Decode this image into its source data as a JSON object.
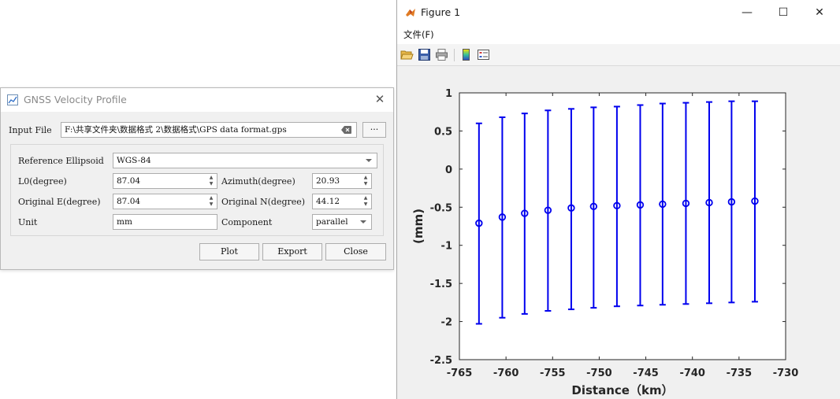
{
  "gnss_dialog": {
    "title": "GNSS Velocity Profile",
    "input_file_label": "Input File",
    "input_file_value": "F:\\共享文件夹\\数据格式 2\\数据格式\\GPS data format.gps",
    "browse_label": "···",
    "ref_ellipsoid_label": "Reference Ellipsoid",
    "ref_ellipsoid_value": "WGS-84",
    "l0_label": "L0(degree)",
    "l0_value": "87.04",
    "azimuth_label": "Azimuth(degree)",
    "azimuth_value": "20.93",
    "orig_e_label": "Original E(degree)",
    "orig_e_value": "87.04",
    "orig_n_label": "Original N(degree)",
    "orig_n_value": "44.12",
    "unit_label": "Unit",
    "unit_value": "mm",
    "component_label": "Component",
    "component_value": "parallel",
    "plot_label": "Plot",
    "export_label": "Export",
    "close_label": "Close"
  },
  "figure_window": {
    "title": "Figure 1",
    "menu_file": "文件(F)",
    "toolbar_icons": [
      "open-folder-icon",
      "save-icon",
      "print-icon",
      "colorbar-icon",
      "legend-icon"
    ]
  },
  "colors": {
    "series": "#0000ee",
    "dialog_bg": "#f0f0f0",
    "axes_bg": "#ffffff"
  },
  "chart_data": {
    "type": "scatter",
    "title": "",
    "xlabel": "Distance（km）",
    "ylabel": "(mm)",
    "xlim": [
      -765,
      -730
    ],
    "ylim": [
      -2.5,
      1
    ],
    "xticks": [
      "-765",
      "-760",
      "-755",
      "-750",
      "-745",
      "-740",
      "-735",
      "-730"
    ],
    "yticks": [
      "1",
      "0.5",
      "0",
      "-0.5",
      "-1",
      "-1.5",
      "-2",
      "-2.5"
    ],
    "grid": false,
    "series": [
      {
        "x": [
          -762.9,
          -760.4,
          -758.0,
          -755.5,
          -753.0,
          -750.6,
          -748.1,
          -745.6,
          -743.2,
          -740.7,
          -738.2,
          -735.8,
          -733.3
        ],
        "y": [
          -0.71,
          -0.63,
          -0.58,
          -0.54,
          -0.51,
          -0.49,
          -0.48,
          -0.47,
          -0.46,
          -0.45,
          -0.44,
          -0.43,
          -0.42
        ],
        "y_upper": [
          0.6,
          0.68,
          0.73,
          0.77,
          0.79,
          0.81,
          0.82,
          0.84,
          0.86,
          0.87,
          0.88,
          0.89,
          0.89
        ],
        "y_lower": [
          -2.03,
          -1.95,
          -1.9,
          -1.86,
          -1.84,
          -1.82,
          -1.8,
          -1.79,
          -1.78,
          -1.77,
          -1.76,
          -1.75,
          -1.74
        ]
      }
    ]
  }
}
